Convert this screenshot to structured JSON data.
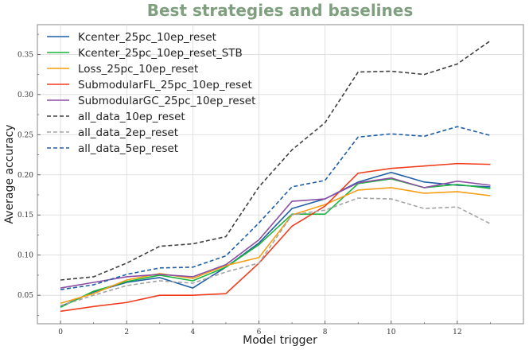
{
  "chart_data": {
    "type": "line",
    "title": "Best strategies and baselines",
    "xlabel": "Model trigger",
    "ylabel": "Average accuracy",
    "xlim": [
      -0.7,
      14.0
    ],
    "ylim": [
      0.0145,
      0.387
    ],
    "xticks": [
      0,
      2,
      4,
      6,
      8,
      10,
      12
    ],
    "yticks": [
      0.05,
      0.1,
      0.15,
      0.2,
      0.25,
      0.3,
      0.35
    ],
    "ytick_labels": [
      "0.05",
      "0.10",
      "0.15",
      "0.20",
      "0.25",
      "0.30",
      "0.35"
    ],
    "grid": true,
    "legend_position": "top-left",
    "x": [
      0,
      1,
      2,
      3,
      4,
      5,
      6,
      7,
      8,
      9,
      10,
      11,
      12,
      13
    ],
    "series": [
      {
        "name": "Kcenter_25pc_10ep_reset",
        "color": "#1f5fa6",
        "dash": "solid",
        "values": [
          0.036,
          0.054,
          0.066,
          0.072,
          0.059,
          0.085,
          0.115,
          0.158,
          0.17,
          0.191,
          0.203,
          0.191,
          0.187,
          0.185
        ]
      },
      {
        "name": "Kcenter_25pc_10ep_reset_STB",
        "color": "#1bb43c",
        "dash": "solid",
        "values": [
          0.035,
          0.055,
          0.067,
          0.075,
          0.068,
          0.085,
          0.113,
          0.151,
          0.151,
          0.189,
          0.195,
          0.184,
          0.188,
          0.183
        ]
      },
      {
        "name": "Loss_25pc_10ep_reset",
        "color": "#f59e14",
        "dash": "solid",
        "values": [
          0.04,
          0.052,
          0.069,
          0.077,
          0.071,
          0.087,
          0.097,
          0.15,
          0.163,
          0.181,
          0.184,
          0.177,
          0.179,
          0.174
        ]
      },
      {
        "name": "SubmodularFL_25pc_10ep_reset",
        "color": "#f03d1e",
        "dash": "solid",
        "values": [
          0.03,
          0.036,
          0.041,
          0.05,
          0.05,
          0.052,
          0.09,
          0.136,
          0.161,
          0.202,
          0.208,
          0.211,
          0.214,
          0.213
        ]
      },
      {
        "name": "SubmodularGC_25pc_10ep_reset",
        "color": "#8c4fa3",
        "dash": "solid",
        "values": [
          0.059,
          0.066,
          0.073,
          0.076,
          0.073,
          0.088,
          0.119,
          0.167,
          0.17,
          0.19,
          0.196,
          0.184,
          0.192,
          0.187
        ]
      },
      {
        "name": "all_data_10ep_reset",
        "color": "#404040",
        "dash": "dashed",
        "values": [
          0.069,
          0.073,
          0.09,
          0.111,
          0.114,
          0.123,
          0.185,
          0.231,
          0.265,
          0.328,
          0.329,
          0.325,
          0.338,
          0.367
        ]
      },
      {
        "name": "all_data_2ep_reset",
        "color": "#a3a3a3",
        "dash": "dashed",
        "values": [
          0.037,
          0.05,
          0.062,
          0.068,
          0.065,
          0.079,
          0.09,
          0.15,
          0.156,
          0.171,
          0.17,
          0.158,
          0.16,
          0.139
        ]
      },
      {
        "name": "all_data_5ep_reset",
        "color": "#1f5fa6",
        "dash": "dashed",
        "values": [
          0.057,
          0.063,
          0.076,
          0.084,
          0.085,
          0.099,
          0.14,
          0.185,
          0.193,
          0.247,
          0.251,
          0.248,
          0.26,
          0.249
        ]
      }
    ]
  }
}
